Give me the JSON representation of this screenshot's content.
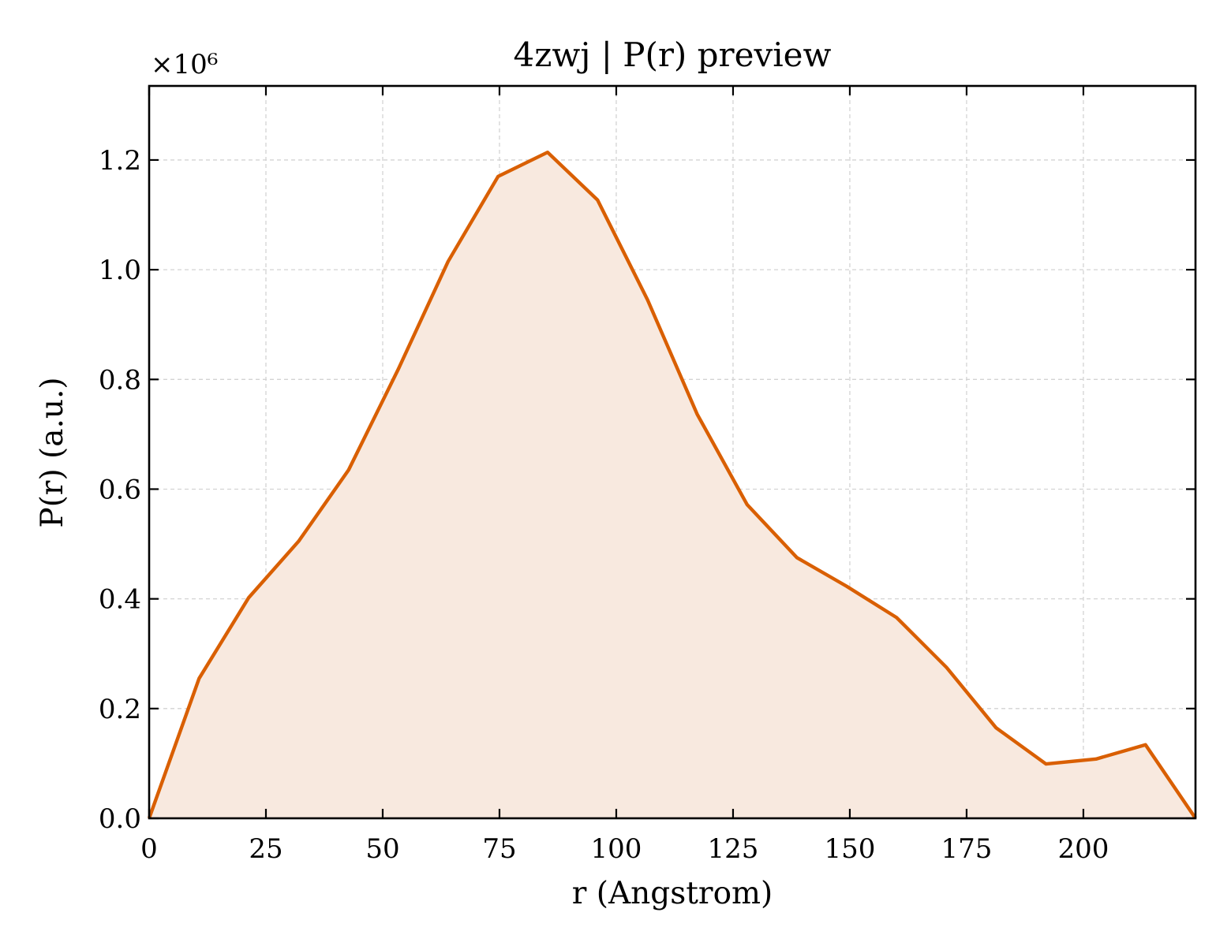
{
  "chart_data": {
    "type": "area",
    "title": "4zwj | P(r) preview",
    "xlabel": "r (Angstrom)",
    "ylabel": "P(r) (a.u.)",
    "y_offset_label": "×10⁶",
    "y_multiplier": 1000000,
    "xlim": [
      0,
      224
    ],
    "ylim": [
      0,
      1.335
    ],
    "grid": true,
    "x_ticks": [
      0,
      25,
      50,
      75,
      100,
      125,
      150,
      175,
      200
    ],
    "y_ticks": [
      0.0,
      0.2,
      0.4,
      0.6,
      0.8,
      1.0,
      1.2
    ],
    "x_tick_labels": [
      "0",
      "25",
      "50",
      "75",
      "100",
      "125",
      "150",
      "175",
      "200"
    ],
    "y_tick_labels": [
      "0.0",
      "0.2",
      "0.4",
      "0.6",
      "0.8",
      "1.0",
      "1.2"
    ],
    "colors": {
      "line": "#d95f02",
      "fill": "#f8e9df",
      "grid": "#d3d3d3",
      "frame": "#000000"
    },
    "series": [
      {
        "x": [
          0,
          10.7,
          21.3,
          32.0,
          42.7,
          53.3,
          64.0,
          74.7,
          85.3,
          96.0,
          106.7,
          117.3,
          128.0,
          138.7,
          149.3,
          160.0,
          170.7,
          181.3,
          192.0,
          202.7,
          213.3,
          224.0
        ],
        "y": [
          0.0,
          0.255,
          0.402,
          0.505,
          0.635,
          0.818,
          1.015,
          1.17,
          1.214,
          1.127,
          0.945,
          0.737,
          0.572,
          0.475,
          0.423,
          0.366,
          0.275,
          0.165,
          0.099,
          0.108,
          0.134,
          0.0
        ]
      }
    ]
  }
}
